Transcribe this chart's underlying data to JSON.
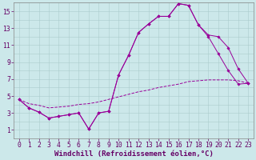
{
  "background_color": "#cce8ea",
  "grid_color": "#aacccc",
  "line_color": "#990099",
  "xlabel": "Windchill (Refroidissement éolien,°C)",
  "xlabel_color": "#660066",
  "xlabel_fontsize": 6.5,
  "tick_fontsize": 5.8,
  "tick_color": "#660066",
  "xlim": [
    -0.5,
    23.5
  ],
  "ylim": [
    0,
    16
  ],
  "yticks": [
    1,
    3,
    5,
    7,
    9,
    11,
    13,
    15
  ],
  "xticks": [
    0,
    1,
    2,
    3,
    4,
    5,
    6,
    7,
    8,
    9,
    10,
    11,
    12,
    13,
    14,
    15,
    16,
    17,
    18,
    19,
    20,
    21,
    22,
    23
  ],
  "line1_x": [
    0,
    1,
    2,
    3,
    4,
    5,
    6,
    7,
    8,
    9,
    10,
    11,
    12,
    13,
    14,
    15,
    16,
    17,
    18,
    19,
    20,
    21,
    22,
    23
  ],
  "line1_y": [
    4.6,
    3.6,
    3.1,
    2.4,
    2.6,
    2.8,
    3.0,
    1.1,
    3.0,
    3.2,
    7.5,
    9.8,
    12.5,
    13.5,
    14.4,
    14.4,
    15.9,
    15.7,
    13.4,
    12.0,
    10.0,
    8.0,
    6.4,
    6.5
  ],
  "line2_x": [
    0,
    1,
    2,
    3,
    4,
    5,
    6,
    7,
    8,
    9,
    10,
    11,
    12,
    13,
    14,
    15,
    16,
    17,
    18,
    19,
    20,
    21,
    22,
    23
  ],
  "line2_y": [
    4.6,
    3.6,
    3.1,
    2.4,
    2.6,
    2.8,
    3.0,
    1.1,
    3.0,
    3.2,
    7.5,
    9.8,
    12.5,
    13.5,
    14.4,
    14.4,
    15.9,
    15.7,
    13.4,
    12.2,
    12.0,
    10.7,
    8.2,
    6.5
  ],
  "line3_x": [
    0,
    1,
    2,
    3,
    4,
    5,
    6,
    7,
    8,
    9,
    10,
    11,
    12,
    13,
    14,
    15,
    16,
    17,
    18,
    19,
    20,
    21,
    22,
    23
  ],
  "line3_y": [
    4.6,
    4.1,
    3.9,
    3.6,
    3.7,
    3.8,
    4.0,
    4.1,
    4.3,
    4.6,
    4.9,
    5.2,
    5.5,
    5.7,
    6.0,
    6.2,
    6.4,
    6.7,
    6.8,
    6.9,
    6.9,
    6.9,
    6.8,
    6.5
  ]
}
